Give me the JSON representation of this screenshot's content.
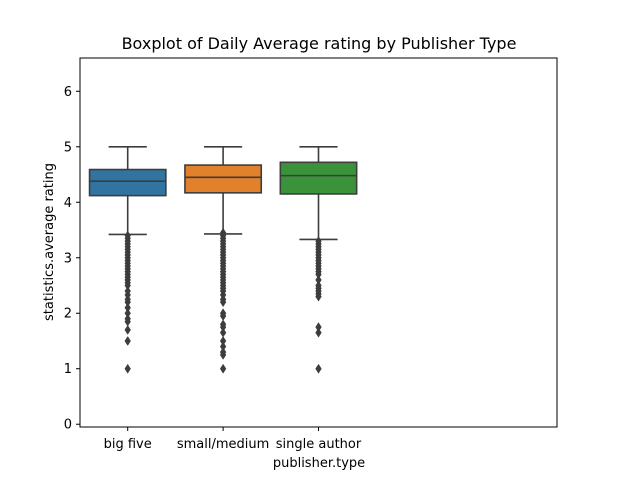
{
  "chart_data": {
    "type": "boxplot",
    "title": "Boxplot of Daily Average rating by Publisher Type",
    "xlabel": "publisher.type",
    "ylabel": "statistics.average rating",
    "ylim": [
      -0.05,
      6.6
    ],
    "yticks": [
      0,
      1,
      2,
      3,
      4,
      5,
      6
    ],
    "categories": [
      "big five",
      "small/medium",
      "single author"
    ],
    "x_slots": 5,
    "grid": false,
    "boxes": [
      {
        "category": "big five",
        "color": "#3274a1",
        "whisker_low": 3.42,
        "q1": 4.12,
        "median": 4.38,
        "q3": 4.59,
        "whisker_high": 5.0,
        "outliers": [
          3.4,
          3.35,
          3.3,
          3.25,
          3.2,
          3.15,
          3.1,
          3.05,
          3.0,
          2.95,
          2.9,
          2.85,
          2.8,
          2.75,
          2.7,
          2.65,
          2.6,
          2.55,
          2.5,
          2.4,
          2.33,
          2.25,
          2.2,
          2.1,
          2.0,
          1.9,
          1.85,
          1.7,
          1.5,
          1.0
        ]
      },
      {
        "category": "small/medium",
        "color": "#e1812c",
        "whisker_low": 3.43,
        "q1": 4.17,
        "median": 4.45,
        "q3": 4.67,
        "whisker_high": 5.0,
        "outliers": [
          3.45,
          3.4,
          3.35,
          3.3,
          3.25,
          3.2,
          3.15,
          3.1,
          3.05,
          3.0,
          2.95,
          2.9,
          2.85,
          2.8,
          2.75,
          2.7,
          2.65,
          2.6,
          2.55,
          2.5,
          2.45,
          2.4,
          2.33,
          2.25,
          2.2,
          2.0,
          1.95,
          1.8,
          1.75,
          1.65,
          1.5,
          1.4,
          1.3,
          1.25,
          1.0
        ]
      },
      {
        "category": "single author",
        "color": "#3a923a",
        "whisker_low": 3.33,
        "q1": 4.15,
        "median": 4.48,
        "q3": 4.72,
        "whisker_high": 5.0,
        "outliers": [
          3.3,
          3.25,
          3.2,
          3.15,
          3.1,
          3.05,
          3.0,
          2.95,
          2.9,
          2.85,
          2.8,
          2.75,
          2.7,
          2.6,
          2.5,
          2.45,
          2.4,
          2.35,
          2.3,
          1.75,
          1.65,
          1.0
        ]
      }
    ]
  }
}
